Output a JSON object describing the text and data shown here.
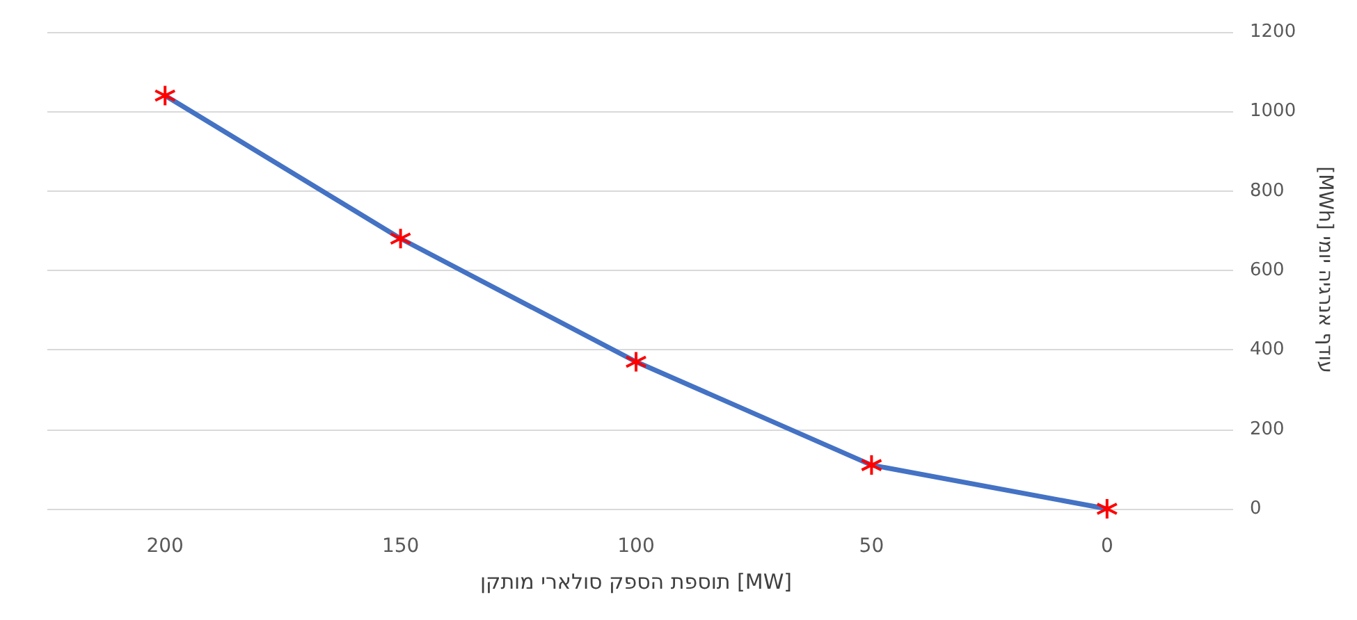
{
  "chart_data": {
    "type": "line",
    "xlabel": "תוספת הספק סולארי מותקן [MW]",
    "ylabel": "עודף אנרגיה יומי [MWh]",
    "categories": [
      "200",
      "150",
      "100",
      "50",
      "0"
    ],
    "series": [
      {
        "color": "#4472c4",
        "colors": [
          "#ff0000",
          "#ff0000",
          "#ff0000",
          "#ff0000",
          "#ff0000"
        ],
        "values": [
          1040,
          680,
          370,
          110,
          0
        ]
      }
    ],
    "ylim": [
      0,
      1200
    ],
    "yticks": [
      0,
      200,
      400,
      600,
      800,
      1000,
      1200
    ],
    "grid": "y",
    "marker": "cross",
    "line_style": "solid"
  }
}
